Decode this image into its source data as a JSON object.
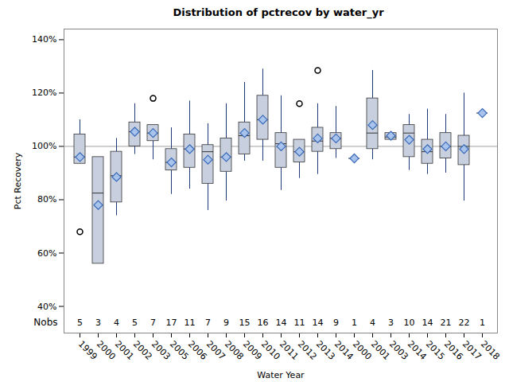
{
  "chart_data": {
    "type": "box",
    "title": "Distribution of pctrecov by water_yr",
    "x_label": "Water Year",
    "y_label": "Pct Recovery",
    "nobs_label": "Nobs",
    "categories": [
      "1999",
      "2000",
      "2001",
      "2002",
      "2003",
      "2005",
      "2006",
      "2007",
      "2008",
      "2009",
      "2010",
      "2011",
      "2012",
      "2013",
      "2014",
      "2000",
      "2001",
      "2003",
      "2014",
      "2015",
      "2016",
      "2017",
      "2018"
    ],
    "whisker_low": [
      93.5,
      56,
      74,
      97,
      95,
      82,
      84,
      76,
      79.5,
      94.5,
      94.5,
      83.5,
      88,
      89.5,
      95.5,
      95.5,
      95,
      102.5,
      91,
      89.5,
      90,
      79.5,
      112.5
    ],
    "q1": [
      93.5,
      56,
      79,
      100,
      102,
      91,
      92,
      86,
      90.5,
      97,
      102.5,
      92,
      94,
      98,
      99,
      95.5,
      99,
      102.5,
      96,
      93.5,
      95.5,
      93,
      112.5
    ],
    "median": [
      96,
      82.5,
      89,
      105.5,
      105,
      94,
      99,
      98,
      96,
      104,
      110,
      101,
      98,
      102,
      103,
      95.5,
      105,
      103.5,
      105,
      98,
      100,
      100,
      112.5
    ],
    "q3": [
      104.5,
      96,
      98,
      109,
      108,
      99,
      104.5,
      100.5,
      103,
      109,
      119,
      105,
      102.5,
      107,
      105,
      95.5,
      118,
      105,
      108,
      102.5,
      105,
      104,
      112.5
    ],
    "whisker_high": [
      110,
      96,
      103,
      116,
      108,
      107,
      117,
      108.5,
      116,
      124,
      129,
      119,
      102.5,
      116,
      115,
      95.5,
      128.5,
      105,
      112,
      114,
      112,
      120,
      112.5
    ],
    "mean": [
      96,
      78,
      88.5,
      105.5,
      105,
      94,
      99,
      95,
      96,
      105,
      110,
      100,
      98,
      103,
      103,
      95.5,
      108,
      104,
      102.5,
      99,
      100,
      99,
      112.5
    ],
    "outliers": [
      [
        68
      ],
      [],
      [],
      [],
      [
        118
      ],
      [],
      [],
      [],
      [],
      [],
      [],
      [],
      [
        116
      ],
      [
        128.5
      ],
      [],
      [],
      [],
      [],
      [],
      [],
      [],
      [],
      []
    ],
    "nobs": [
      5,
      3,
      4,
      5,
      7,
      17,
      11,
      7,
      9,
      15,
      16,
      14,
      11,
      14,
      9,
      1,
      4,
      3,
      10,
      14,
      21,
      22,
      1
    ],
    "reference_line": 100,
    "ylim": [
      30,
      144
    ],
    "yticks": [
      {
        "value": 40,
        "label": "40%"
      },
      {
        "value": 60,
        "label": "60%"
      },
      {
        "value": 80,
        "label": "80%"
      },
      {
        "value": 100,
        "label": "100%"
      },
      {
        "value": 120,
        "label": "120%"
      },
      {
        "value": 140,
        "label": "140%"
      }
    ],
    "color": "#c8d0e0",
    "marker": "diamond",
    "grid": false
  }
}
